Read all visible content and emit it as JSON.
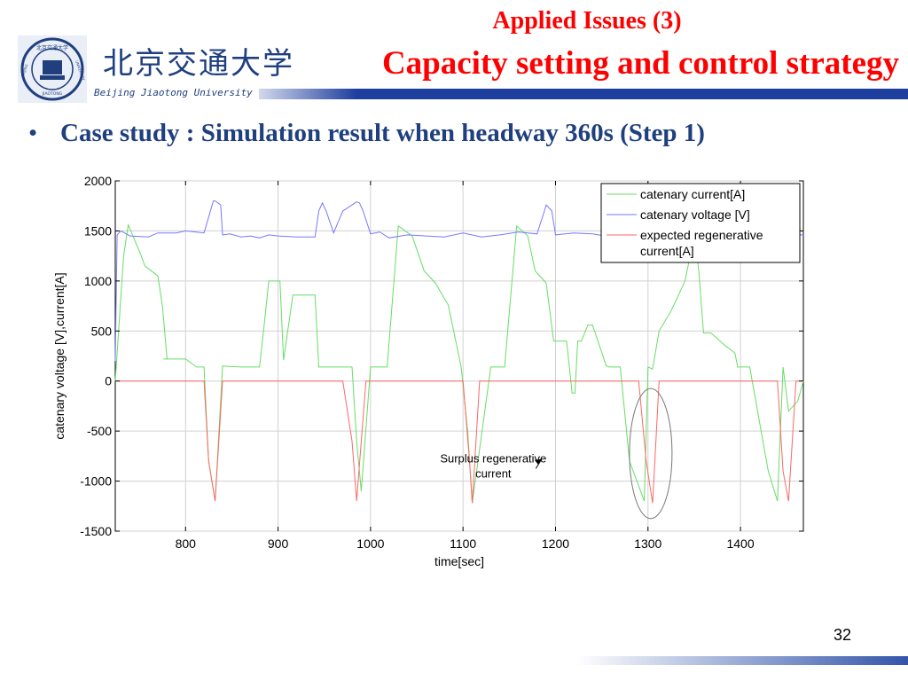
{
  "header": {
    "university_cn": "北京交通大学",
    "university_en": "Beijing Jiaotong University",
    "emblem_text_top": "北京交通大学",
    "emblem_text_left": "BEIJING",
    "emblem_text_right": "UNIVERSITY",
    "emblem_text_bottom": "JIAOTONG",
    "subtitle": "Applied Issues (3)",
    "title": "Capacity setting and control strategy"
  },
  "bullet": {
    "marker": "•",
    "text": "Case study : Simulation result when headway 360s (Step 1)"
  },
  "colors": {
    "title_red": "#ff0000",
    "text_navy": "#1f3f7f",
    "current_green": "#66dd66",
    "voltage_blue": "#7777ff",
    "regen_red": "#ff6666",
    "footer_blue": "#3355aa"
  },
  "chart_data": {
    "type": "line",
    "xlabel": "time[sec]",
    "ylabel": "catenary voltage [V],current[A]",
    "xlim": [
      724,
      1468
    ],
    "ylim": [
      -1500,
      2000
    ],
    "xticks": [
      800,
      900,
      1000,
      1100,
      1200,
      1300,
      1400
    ],
    "yticks": [
      -1500,
      -1000,
      -500,
      0,
      500,
      1000,
      1500,
      2000
    ],
    "grid": true,
    "legend_position": "top-right",
    "annotation": {
      "text": "Surplus regenerative current",
      "x": 1150,
      "y": -830,
      "arrow_to": [
        1185,
        -780
      ]
    },
    "highlight": {
      "type": "ellipse",
      "center": [
        1303,
        -725
      ],
      "rx": 23,
      "ry": 650
    },
    "series": [
      {
        "name": "catenary current[A]",
        "color": "#66dd66",
        "x": [
          724,
          733,
          738,
          750,
          756,
          770,
          775,
          780,
          776,
          800,
          812,
          820,
          825,
          832,
          840,
          860,
          880,
          886,
          890,
          902,
          906,
          916,
          940,
          944,
          980,
          985,
          990,
          1000,
          1018,
          1030,
          1045,
          1058,
          1070,
          1084,
          1098,
          1105,
          1110,
          1130,
          1145,
          1158,
          1170,
          1178,
          1190,
          1198,
          1212,
          1218,
          1221,
          1224,
          1228,
          1235,
          1240,
          1255,
          1258,
          1270,
          1280,
          1296,
          1300,
          1305,
          1312,
          1325,
          1340,
          1350,
          1355,
          1360,
          1368,
          1384,
          1394,
          1397,
          1410,
          1430,
          1440,
          1446,
          1452,
          1462,
          1468
        ],
        "y": [
          0,
          1250,
          1560,
          1300,
          1150,
          1050,
          750,
          220,
          220,
          220,
          140,
          140,
          -800,
          -1200,
          150,
          140,
          140,
          650,
          1000,
          1000,
          210,
          860,
          860,
          140,
          140,
          -600,
          -1100,
          140,
          140,
          1550,
          1450,
          1100,
          980,
          760,
          140,
          -500,
          -1220,
          140,
          140,
          1550,
          1450,
          1100,
          980,
          400,
          400,
          -120,
          -120,
          400,
          400,
          560,
          560,
          150,
          140,
          140,
          -800,
          -1200,
          140,
          120,
          500,
          700,
          1000,
          1450,
          1100,
          480,
          480,
          350,
          280,
          140,
          140,
          -900,
          -1200,
          140,
          -300,
          -200,
          0
        ]
      },
      {
        "name": "catenary voltage [V]",
        "color": "#7777ff",
        "x": [
          724,
          726,
          730,
          740,
          760,
          770,
          790,
          800,
          820,
          830,
          832,
          838,
          840,
          848,
          860,
          870,
          880,
          890,
          900,
          920,
          940,
          944,
          948,
          952,
          960,
          970,
          985,
          988,
          992,
          1000,
          1010,
          1020,
          1040,
          1060,
          1080,
          1100,
          1120,
          1140,
          1160,
          1180,
          1188,
          1190,
          1196,
          1200,
          1220,
          1240,
          1260,
          1290,
          1310,
          1330,
          1350,
          1370,
          1400,
          1420,
          1440,
          1468
        ],
        "y": [
          200,
          1460,
          1500,
          1450,
          1440,
          1480,
          1480,
          1500,
          1480,
          1800,
          1800,
          1760,
          1460,
          1470,
          1440,
          1450,
          1430,
          1460,
          1450,
          1440,
          1440,
          1700,
          1780,
          1700,
          1480,
          1700,
          1790,
          1780,
          1700,
          1470,
          1490,
          1430,
          1460,
          1450,
          1440,
          1480,
          1440,
          1460,
          1490,
          1470,
          1700,
          1760,
          1700,
          1460,
          1480,
          1470,
          1440,
          1460,
          1480,
          1470,
          1460,
          1450,
          1480,
          1470,
          1460,
          1460
        ]
      },
      {
        "name": "expected regenerative current[A]",
        "color": "#ff6666",
        "x": [
          724,
          820,
          825,
          832,
          840,
          970,
          980,
          985,
          995,
          1100,
          1107,
          1110,
          1118,
          1290,
          1298,
          1305,
          1312,
          1440,
          1446,
          1452,
          1460,
          1468
        ],
        "y": [
          0,
          0,
          -800,
          -1200,
          0,
          0,
          -600,
          -1200,
          0,
          0,
          -800,
          -1220,
          0,
          0,
          -800,
          -1220,
          0,
          0,
          -900,
          -1200,
          0,
          0
        ]
      }
    ]
  },
  "page_number": "32"
}
